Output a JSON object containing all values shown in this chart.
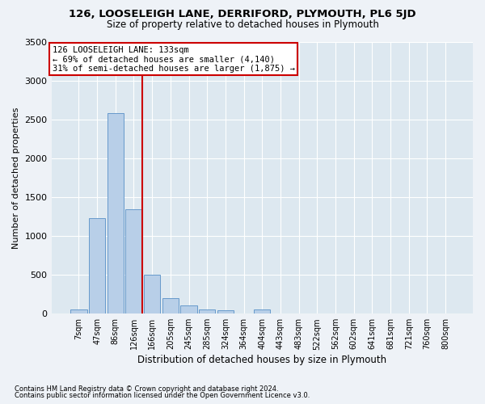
{
  "title1": "126, LOOSELEIGH LANE, DERRIFORD, PLYMOUTH, PL6 5JD",
  "title2": "Size of property relative to detached houses in Plymouth",
  "xlabel": "Distribution of detached houses by size in Plymouth",
  "ylabel": "Number of detached properties",
  "footnote1": "Contains HM Land Registry data © Crown copyright and database right 2024.",
  "footnote2": "Contains public sector information licensed under the Open Government Licence v3.0.",
  "bar_labels": [
    "7sqm",
    "47sqm",
    "86sqm",
    "126sqm",
    "166sqm",
    "205sqm",
    "245sqm",
    "285sqm",
    "324sqm",
    "364sqm",
    "404sqm",
    "443sqm",
    "483sqm",
    "522sqm",
    "562sqm",
    "602sqm",
    "641sqm",
    "681sqm",
    "721sqm",
    "760sqm",
    "800sqm"
  ],
  "bar_values": [
    55,
    1230,
    2580,
    1340,
    500,
    195,
    105,
    50,
    45,
    0,
    55,
    0,
    0,
    0,
    0,
    0,
    0,
    0,
    0,
    0,
    0
  ],
  "bar_color": "#b8cfe8",
  "bar_edge_color": "#6699cc",
  "vline_color": "#cc0000",
  "vline_index": 3,
  "annotation_line1": "126 LOOSELEIGH LANE: 133sqm",
  "annotation_line2": "← 69% of detached houses are smaller (4,140)",
  "annotation_line3": "31% of semi-detached houses are larger (1,875) →",
  "annotation_box_facecolor": "#ffffff",
  "annotation_box_edgecolor": "#cc0000",
  "ylim": [
    0,
    3500
  ],
  "yticks": [
    0,
    500,
    1000,
    1500,
    2000,
    2500,
    3000,
    3500
  ],
  "ax_facecolor": "#dde8f0",
  "fig_facecolor": "#eef2f7",
  "grid_color": "#ffffff",
  "title1_fontsize": 9.5,
  "title2_fontsize": 8.5,
  "ylabel_fontsize": 8.0,
  "xlabel_fontsize": 8.5,
  "tick_fontsize": 7.0,
  "annot_fontsize": 7.5,
  "footnote_fontsize": 6.0
}
